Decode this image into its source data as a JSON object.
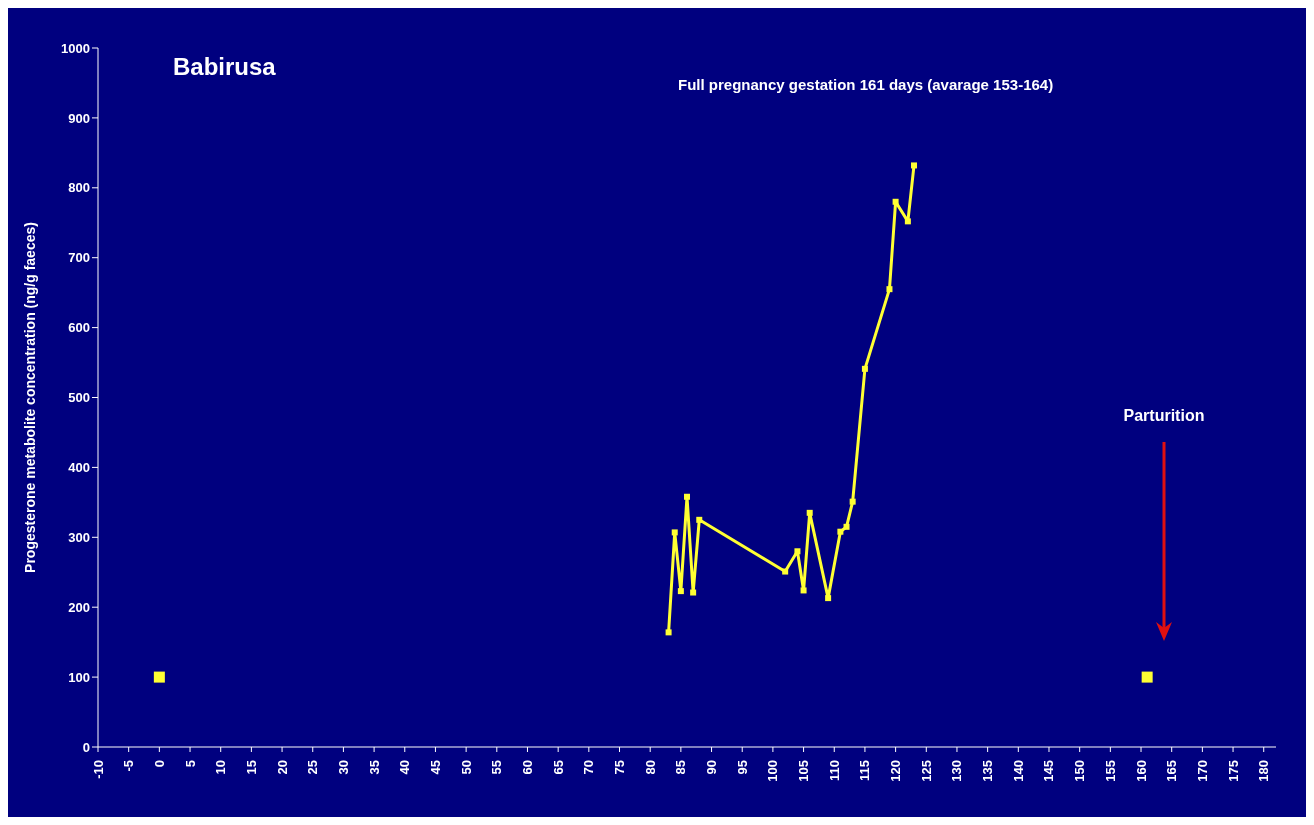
{
  "chart_data": {
    "type": "line",
    "title": "Babirusa",
    "subtitle": "Full pregnancy gestation 161 days (avarage 153-164)",
    "ylabel": "Progesterone metabolite concentration (ng/g faeces)",
    "series": [
      {
        "color": "#ffff33",
        "x": [
          83,
          84,
          85,
          86,
          87,
          88,
          102,
          104,
          105,
          106,
          109,
          111,
          112,
          113,
          115,
          119,
          120,
          122,
          123
        ],
        "values": [
          164,
          307,
          223,
          358,
          221,
          325,
          251,
          280,
          224,
          335,
          213,
          308,
          315,
          351,
          541,
          655,
          780,
          752,
          832
        ]
      },
      {
        "type": "scatter",
        "color": "#ffff33",
        "x": [
          0,
          161
        ],
        "values": [
          100,
          100
        ]
      }
    ],
    "annotations": [
      "Parturition"
    ],
    "xlim": [
      -10,
      182
    ],
    "xticks": [
      -10,
      -5,
      0,
      5,
      10,
      15,
      20,
      25,
      30,
      35,
      40,
      45,
      50,
      55,
      60,
      65,
      70,
      75,
      80,
      85,
      90,
      95,
      100,
      105,
      110,
      115,
      120,
      125,
      130,
      135,
      140,
      145,
      150,
      155,
      160,
      165,
      170,
      175,
      180
    ],
    "ylim": [
      0,
      1000
    ],
    "yticks": [
      0,
      100,
      200,
      300,
      400,
      500,
      600,
      700,
      800,
      900,
      1000
    ],
    "grid": false,
    "marker": "square"
  }
}
